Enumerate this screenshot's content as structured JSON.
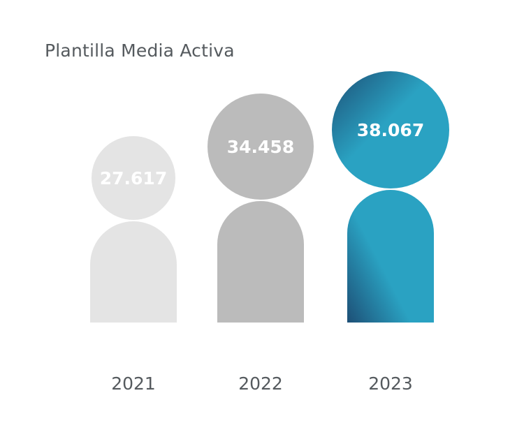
{
  "chart_data": {
    "type": "bar",
    "title": "Plantilla Media Activa",
    "categories": [
      "2021",
      "2022",
      "2023"
    ],
    "values": [
      27617,
      34458,
      38067
    ],
    "value_labels": [
      "27.617",
      "34.458",
      "38.067"
    ],
    "colors": [
      "#e4e4e4",
      "#bbbbbb",
      "#31a3c0"
    ],
    "highlight_gradient": [
      "#2aa2c2",
      "#1d4f76"
    ]
  }
}
